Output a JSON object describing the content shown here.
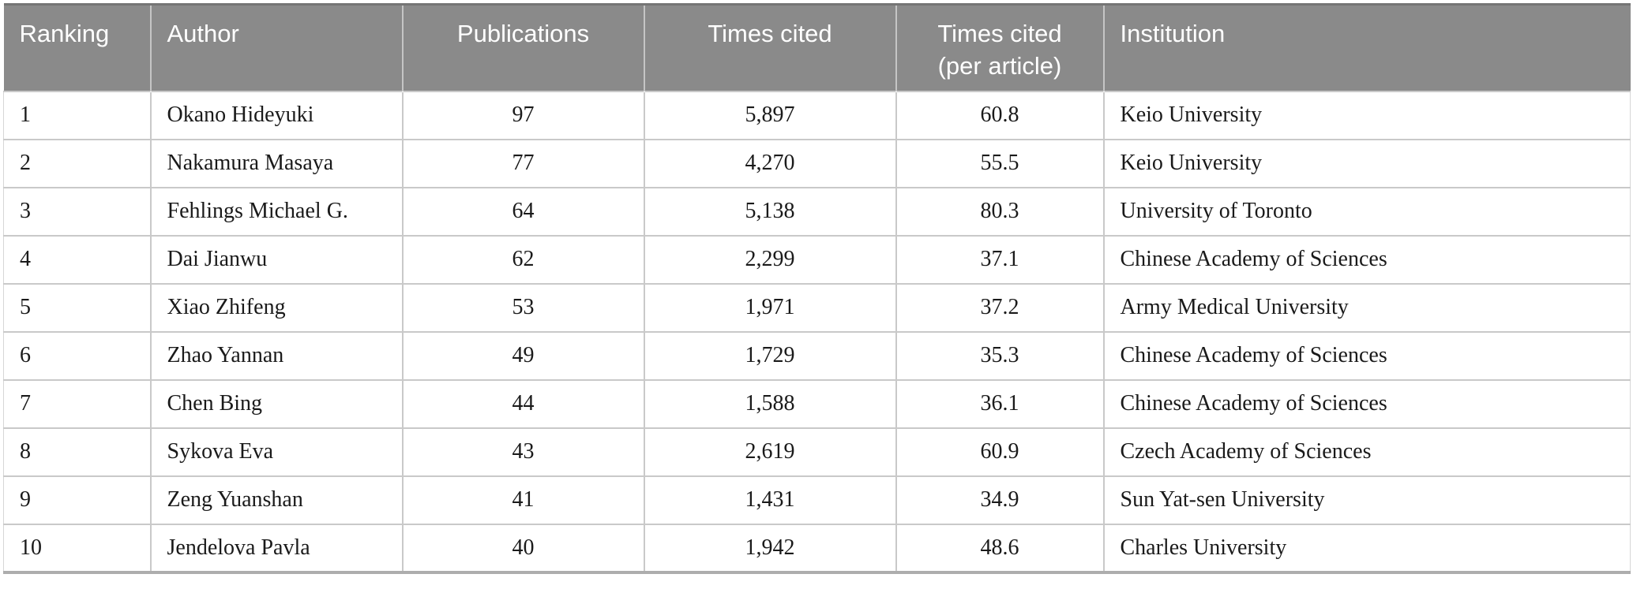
{
  "table": {
    "name": "top-cited-authors-ranking",
    "columns": [
      {
        "key": "ranking",
        "label": "Ranking",
        "align": "left"
      },
      {
        "key": "author",
        "label": "Author",
        "align": "left"
      },
      {
        "key": "publications",
        "label": "Publications",
        "align": "center"
      },
      {
        "key": "times_cited",
        "label": "Times cited",
        "align": "center"
      },
      {
        "key": "per_article",
        "label": "Times cited\n(per article)",
        "align": "center"
      },
      {
        "key": "institution",
        "label": "Institution",
        "align": "left"
      }
    ],
    "rows": [
      [
        "1",
        "Okano Hideyuki",
        "97",
        "5,897",
        "60.8",
        "Keio University"
      ],
      [
        "2",
        "Nakamura Masaya",
        "77",
        "4,270",
        "55.5",
        "Keio University"
      ],
      [
        "3",
        "Fehlings Michael G.",
        "64",
        "5,138",
        "80.3",
        "University of Toronto"
      ],
      [
        "4",
        "Dai Jianwu",
        "62",
        "2,299",
        "37.1",
        "Chinese Academy of Sciences"
      ],
      [
        "5",
        "Xiao Zhifeng",
        "53",
        "1,971",
        "37.2",
        "Army Medical University"
      ],
      [
        "6",
        "Zhao Yannan",
        "49",
        "1,729",
        "35.3",
        "Chinese Academy of Sciences"
      ],
      [
        "7",
        "Chen Bing",
        "44",
        "1,588",
        "36.1",
        "Chinese Academy of Sciences"
      ],
      [
        "8",
        "Sykova Eva",
        "43",
        "2,619",
        "60.9",
        "Czech Academy of Sciences"
      ],
      [
        "9",
        "Zeng Yuanshan",
        "41",
        "1,431",
        "34.9",
        "Sun Yat-sen University"
      ],
      [
        "10",
        "Jendelova Pavla",
        "40",
        "1,942",
        "48.6",
        "Charles University"
      ]
    ]
  },
  "colors": {
    "header_bg": "#8a8a8a",
    "header_text": "#ffffff",
    "body_text": "#1a1a1a",
    "row_border": "#c9c9c9",
    "bottom_border": "#adadad"
  }
}
